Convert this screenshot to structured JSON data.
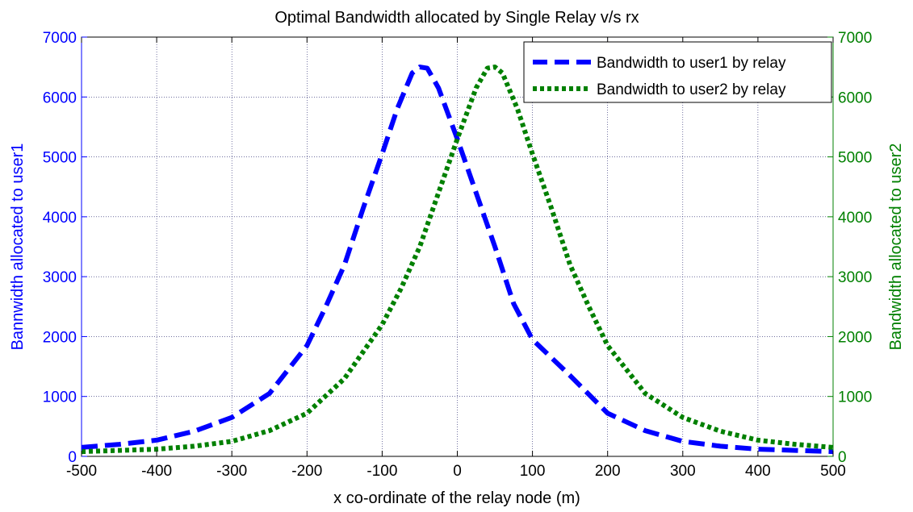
{
  "chart_data": {
    "type": "line",
    "title": "Optimal Bandwidth allocated by Single Relay v/s rx",
    "xlabel": "x co-ordinate of the relay node (m)",
    "ylabel_left": "Bannwidth allocated to user1",
    "ylabel_right": "Bandwidth allocated to user2",
    "xlim": [
      -500,
      500
    ],
    "ylim": [
      0,
      7000
    ],
    "y2lim": [
      0,
      7000
    ],
    "grid": true,
    "legend_position": "top-right",
    "x_ticks": [
      -500,
      -400,
      -300,
      -200,
      -100,
      0,
      100,
      200,
      300,
      400,
      500
    ],
    "y_ticks": [
      0,
      1000,
      2000,
      3000,
      4000,
      5000,
      6000,
      7000
    ],
    "x_tick_labels": [
      "-500",
      "-400",
      "-300",
      "-200",
      "-100",
      "0",
      "100",
      "200",
      "300",
      "400",
      "500"
    ],
    "y_tick_labels": [
      "0",
      "1000",
      "2000",
      "3000",
      "4000",
      "5000",
      "6000",
      "7000"
    ],
    "y2_tick_labels": [
      "0",
      "1000",
      "2000",
      "3000",
      "4000",
      "5000",
      "6000",
      "7000"
    ],
    "colors": {
      "left_axis": "#0000ff",
      "right_axis": "#008000",
      "grid": "#1a1a66"
    },
    "series": [
      {
        "name": "Bandwidth to user1 by relay",
        "color": "#0000ff",
        "style": "dashed",
        "axis": "left",
        "x": [
          -500,
          -450,
          -400,
          -350,
          -300,
          -250,
          -200,
          -175,
          -150,
          -125,
          -100,
          -80,
          -60,
          -50,
          -40,
          -25,
          0,
          25,
          50,
          75,
          100,
          150,
          200,
          250,
          300,
          350,
          400,
          450,
          500
        ],
        "y": [
          150,
          200,
          270,
          420,
          650,
          1050,
          1850,
          2500,
          3200,
          4150,
          5050,
          5800,
          6400,
          6500,
          6480,
          6150,
          5300,
          4400,
          3500,
          2550,
          1950,
          1350,
          720,
          430,
          250,
          170,
          120,
          100,
          80
        ]
      },
      {
        "name": "Bandwidth to user2 by relay",
        "color": "#008000",
        "style": "dotted",
        "axis": "right",
        "x": [
          -500,
          -450,
          -400,
          -350,
          -300,
          -250,
          -200,
          -150,
          -100,
          -75,
          -50,
          -25,
          0,
          25,
          40,
          50,
          60,
          80,
          100,
          125,
          150,
          175,
          200,
          250,
          300,
          350,
          400,
          450,
          500
        ],
        "y": [
          80,
          100,
          120,
          170,
          250,
          430,
          720,
          1300,
          2200,
          2800,
          3500,
          4400,
          5300,
          6150,
          6480,
          6500,
          6400,
          5800,
          5050,
          4150,
          3200,
          2500,
          1850,
          1050,
          650,
          420,
          270,
          200,
          150
        ]
      }
    ]
  }
}
